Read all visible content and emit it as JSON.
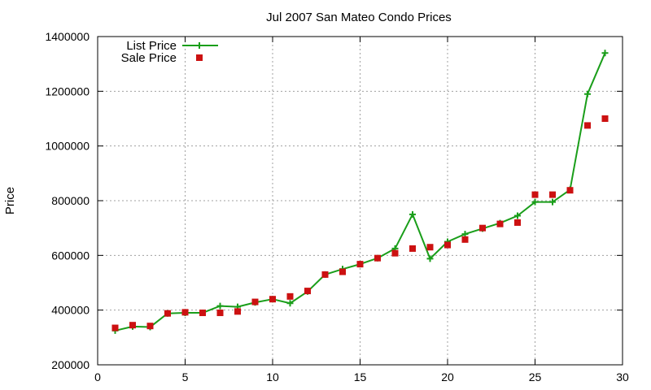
{
  "chart_data": {
    "type": "line",
    "title": "Jul 2007 San Mateo Condo Prices",
    "xlabel": "",
    "ylabel": "Price",
    "xlim": [
      0,
      30
    ],
    "ylim": [
      200000,
      1400000
    ],
    "x_ticks": [
      0,
      5,
      10,
      15,
      20,
      25,
      30
    ],
    "y_ticks": [
      200000,
      400000,
      600000,
      800000,
      1000000,
      1200000,
      1400000
    ],
    "x_tick_labels": [
      "0",
      "5",
      "10",
      "15",
      "20",
      "25",
      "30"
    ],
    "y_tick_labels": [
      "200000",
      "400000",
      "600000",
      "800000",
      "1000000",
      "1200000",
      "1400000"
    ],
    "grid": true,
    "legend_position": "top-left",
    "x": [
      1,
      2,
      3,
      4,
      5,
      6,
      7,
      8,
      9,
      10,
      11,
      12,
      13,
      14,
      15,
      16,
      17,
      18,
      19,
      20,
      21,
      22,
      23,
      24,
      25,
      26,
      27,
      28,
      29
    ],
    "series": [
      {
        "name": "List Price",
        "style": "lines+points",
        "marker": "plus",
        "color": "#1a9e1a",
        "values": [
          325000,
          340000,
          338000,
          388000,
          390000,
          390000,
          415000,
          412000,
          428000,
          440000,
          425000,
          468000,
          530000,
          550000,
          568000,
          590000,
          625000,
          750000,
          588000,
          650000,
          678000,
          698000,
          718000,
          745000,
          795000,
          795000,
          840000,
          1190000,
          1340000
        ]
      },
      {
        "name": "Sale Price",
        "style": "points",
        "marker": "square",
        "color": "#cc1111",
        "values": [
          335000,
          345000,
          342000,
          388000,
          392000,
          390000,
          390000,
          395000,
          430000,
          440000,
          450000,
          470000,
          530000,
          540000,
          568000,
          590000,
          608000,
          625000,
          630000,
          638000,
          658000,
          700000,
          715000,
          720000,
          822000,
          822000,
          838000,
          1075000,
          1100000
        ]
      }
    ]
  }
}
